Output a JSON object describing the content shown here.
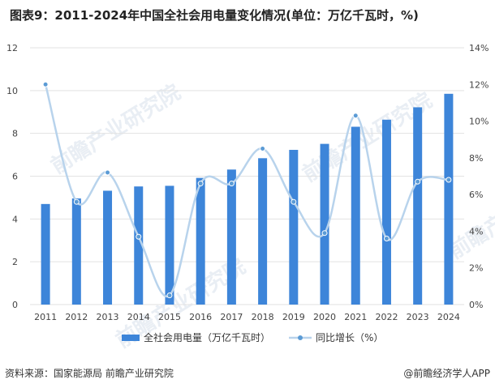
{
  "chart_data": {
    "type": "bar+line",
    "title": "图表9：2011-2024年中国全社会用电量变化情况(单位：万亿千瓦时，%)",
    "categories": [
      "2011",
      "2012",
      "2013",
      "2014",
      "2015",
      "2016",
      "2017",
      "2018",
      "2019",
      "2020",
      "2021",
      "2022",
      "2023",
      "2024"
    ],
    "series": [
      {
        "name": "全社会用电量（万亿千瓦时）",
        "type": "bar",
        "axis": "left",
        "color": "#3d85d9",
        "values": [
          4.7,
          4.96,
          5.32,
          5.52,
          5.55,
          5.92,
          6.31,
          6.84,
          7.23,
          7.51,
          8.31,
          8.64,
          9.22,
          9.85
        ]
      },
      {
        "name": "同比增长（%）",
        "type": "line",
        "axis": "right",
        "color": "#b8d3ec",
        "values": [
          12.0,
          5.6,
          7.2,
          3.7,
          0.5,
          6.6,
          6.6,
          8.5,
          5.6,
          3.9,
          10.3,
          3.6,
          6.7,
          6.8
        ]
      }
    ],
    "y_left": {
      "min": 0,
      "max": 12,
      "ticks": [
        "0",
        "2",
        "4",
        "6",
        "8",
        "10",
        "12"
      ]
    },
    "y_right": {
      "min": 0,
      "max": 14,
      "ticks": [
        "0%",
        "2%",
        "4%",
        "6%",
        "8%",
        "10%",
        "12%",
        "14%"
      ]
    },
    "grid": true,
    "legend_position": "bottom-center"
  },
  "legend": {
    "bar_label": "全社会用电量（万亿千瓦时）",
    "line_label": "同比增长（%）"
  },
  "footer": {
    "source": "资料来源：国家能源局 前瞻产业研究院",
    "brand": "@前瞻经济学人APP"
  },
  "watermark": {
    "text": "前瞻产业研究院"
  }
}
